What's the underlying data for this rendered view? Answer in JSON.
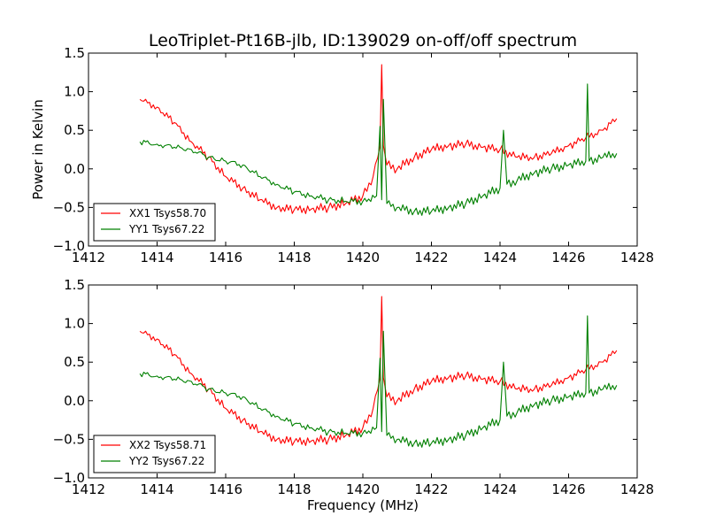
{
  "chart_data": [
    {
      "type": "line",
      "title": "LeoTriplet-Pt16B-jlb, ID:139029 on-off/off spectrum",
      "xlabel": "",
      "ylabel": "Power in Kelvin",
      "xlim": [
        1412,
        1428
      ],
      "ylim": [
        -1.0,
        1.5
      ],
      "xticks": [
        "1412",
        "1414",
        "1416",
        "1418",
        "1420",
        "1422",
        "1424",
        "1426",
        "1428"
      ],
      "yticks": [
        "−1.0",
        "−0.5",
        "0.0",
        "0.5",
        "1.0",
        "1.5"
      ],
      "legend_position": "lower-left",
      "series": [
        {
          "name": "XX1 Tsys58.70",
          "color": "#ff0000",
          "x": [
            1413.5,
            1414,
            1414.5,
            1415,
            1415.5,
            1416,
            1416.5,
            1417,
            1417.5,
            1418,
            1418.5,
            1419,
            1419.5,
            1420,
            1420.3,
            1420.5,
            1420.55,
            1420.6,
            1420.7,
            1421,
            1421.5,
            1422,
            1422.5,
            1423,
            1423.5,
            1424,
            1424.5,
            1425,
            1425.5,
            1426,
            1426.5,
            1427,
            1427.4
          ],
          "values": [
            0.9,
            0.8,
            0.6,
            0.35,
            0.15,
            -0.1,
            -0.25,
            -0.4,
            -0.5,
            -0.53,
            -0.52,
            -0.5,
            -0.45,
            -0.35,
            -0.1,
            0.3,
            1.35,
            0.3,
            0.05,
            0.0,
            0.15,
            0.25,
            0.3,
            0.32,
            0.28,
            0.25,
            0.15,
            0.15,
            0.2,
            0.3,
            0.4,
            0.5,
            0.65
          ]
        },
        {
          "name": "YY1 Tsys67.22",
          "color": "#008000",
          "x": [
            1413.5,
            1414,
            1414.5,
            1415,
            1415.5,
            1416,
            1416.5,
            1417,
            1417.5,
            1418,
            1418.5,
            1419,
            1419.5,
            1420,
            1420.4,
            1420.5,
            1420.55,
            1420.6,
            1420.7,
            1421,
            1421.5,
            1422,
            1422.5,
            1423,
            1423.5,
            1424,
            1424.1,
            1424.2,
            1424.5,
            1425,
            1425.5,
            1426,
            1426.5,
            1426.55,
            1426.6,
            1427,
            1427.4
          ],
          "values": [
            0.35,
            0.32,
            0.28,
            0.25,
            0.15,
            0.1,
            0.05,
            -0.1,
            -0.2,
            -0.3,
            -0.35,
            -0.4,
            -0.42,
            -0.42,
            -0.35,
            0.55,
            -0.4,
            0.9,
            -0.45,
            -0.5,
            -0.55,
            -0.55,
            -0.5,
            -0.45,
            -0.35,
            -0.25,
            0.5,
            -0.2,
            -0.15,
            -0.05,
            0.0,
            0.05,
            0.1,
            1.1,
            0.1,
            0.15,
            0.2
          ]
        }
      ]
    },
    {
      "type": "line",
      "title": "",
      "xlabel": "Frequency (MHz)",
      "ylabel": "",
      "xlim": [
        1412,
        1428
      ],
      "ylim": [
        -1.0,
        1.5
      ],
      "xticks": [
        "1412",
        "1414",
        "1416",
        "1418",
        "1420",
        "1422",
        "1424",
        "1426",
        "1428"
      ],
      "yticks": [
        "−1.0",
        "−0.5",
        "0.0",
        "0.5",
        "1.0",
        "1.5"
      ],
      "legend_position": "lower-left",
      "series": [
        {
          "name": "XX2 Tsys58.71",
          "color": "#ff0000",
          "x": [
            1413.5,
            1414,
            1414.5,
            1415,
            1415.5,
            1416,
            1416.5,
            1417,
            1417.5,
            1418,
            1418.5,
            1419,
            1419.5,
            1420,
            1420.3,
            1420.5,
            1420.55,
            1420.6,
            1420.7,
            1421,
            1421.5,
            1422,
            1422.5,
            1423,
            1423.5,
            1424,
            1424.5,
            1425,
            1425.5,
            1426,
            1426.5,
            1427,
            1427.4
          ],
          "values": [
            0.9,
            0.8,
            0.6,
            0.35,
            0.15,
            -0.1,
            -0.25,
            -0.4,
            -0.5,
            -0.53,
            -0.52,
            -0.5,
            -0.45,
            -0.35,
            -0.1,
            0.3,
            1.35,
            0.3,
            0.05,
            0.0,
            0.15,
            0.25,
            0.3,
            0.32,
            0.28,
            0.25,
            0.15,
            0.15,
            0.2,
            0.3,
            0.4,
            0.5,
            0.65
          ]
        },
        {
          "name": "YY2 Tsys67.22",
          "color": "#008000",
          "x": [
            1413.5,
            1414,
            1414.5,
            1415,
            1415.5,
            1416,
            1416.5,
            1417,
            1417.5,
            1418,
            1418.5,
            1419,
            1419.5,
            1420,
            1420.4,
            1420.5,
            1420.55,
            1420.6,
            1420.7,
            1421,
            1421.5,
            1422,
            1422.5,
            1423,
            1423.5,
            1424,
            1424.1,
            1424.2,
            1424.5,
            1425,
            1425.5,
            1426,
            1426.5,
            1426.55,
            1426.6,
            1427,
            1427.4
          ],
          "values": [
            0.35,
            0.32,
            0.28,
            0.25,
            0.15,
            0.1,
            0.05,
            -0.1,
            -0.2,
            -0.3,
            -0.35,
            -0.4,
            -0.42,
            -0.42,
            -0.35,
            0.55,
            -0.4,
            0.9,
            -0.45,
            -0.5,
            -0.55,
            -0.55,
            -0.5,
            -0.45,
            -0.35,
            -0.25,
            0.5,
            -0.2,
            -0.15,
            -0.05,
            0.0,
            0.05,
            0.1,
            1.1,
            0.1,
            0.15,
            0.2
          ]
        }
      ]
    }
  ]
}
